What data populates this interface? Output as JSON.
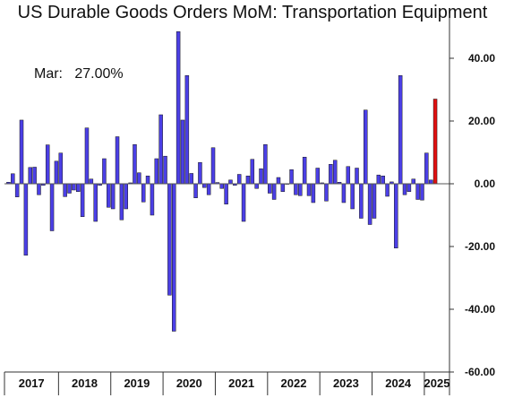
{
  "chart_data": {
    "type": "bar",
    "title": "US Durable Goods Orders MoM: Transportation Equipment",
    "annotation": {
      "label": "Mar:",
      "value": "27.00%"
    },
    "ylim": [
      -60,
      50
    ],
    "yticks": [
      40,
      20,
      0,
      -20,
      -40,
      -60
    ],
    "ytick_labels": [
      "40.00",
      "20.00",
      "0.00",
      "-20.00",
      "-40.00",
      "-60.00"
    ],
    "grid": false,
    "year_labels": [
      "2017",
      "2018",
      "2019",
      "2020",
      "2021",
      "2022",
      "2023",
      "2024",
      "2025"
    ],
    "colors": {
      "bar": "#4b3fe6",
      "highlight": "#e01010",
      "bar_edge": "#1a1a1a"
    },
    "series": [
      {
        "values": [
          0.5,
          3.2,
          -4.2,
          20.3,
          -22.8,
          5.2,
          5.3,
          -3.5,
          -0.5,
          12.4,
          -15.0,
          7.2,
          9.8,
          -4.1,
          -3.0,
          -2.0,
          -2.5,
          -10.5,
          17.8,
          1.5,
          -12.0,
          -0.5,
          8.0,
          -7.5,
          -8.0,
          15.0,
          -11.5,
          -8.0,
          0.3,
          12.5,
          3.5,
          -5.8,
          2.5,
          -10.0,
          8.0,
          22.0,
          8.8,
          -35.5,
          -47.0,
          48.5,
          20.3,
          34.5,
          3.3,
          -4.5,
          6.8,
          -1.2,
          -3.5,
          11.5,
          0.4,
          -1.5,
          -6.5,
          1.2,
          -0.5,
          3.0,
          -12.0,
          2.5,
          7.8,
          -1.5,
          4.8,
          12.5,
          -3.0,
          -5.0,
          2.0,
          -2.5,
          0.0,
          4.5,
          -3.5,
          -3.8,
          8.5,
          -3.8,
          -6.0,
          5.0,
          0.3,
          -5.5,
          6.2,
          7.5,
          0.5,
          -6.0,
          5.5,
          -8.0,
          5.0,
          -11.0,
          23.5,
          -13.0,
          -11.0,
          2.8,
          2.5,
          -4.0,
          0.6,
          -20.5,
          34.5,
          -3.5,
          -2.5,
          1.5,
          -5.0,
          -5.2,
          9.8,
          1.2,
          27.0
        ]
      }
    ]
  }
}
